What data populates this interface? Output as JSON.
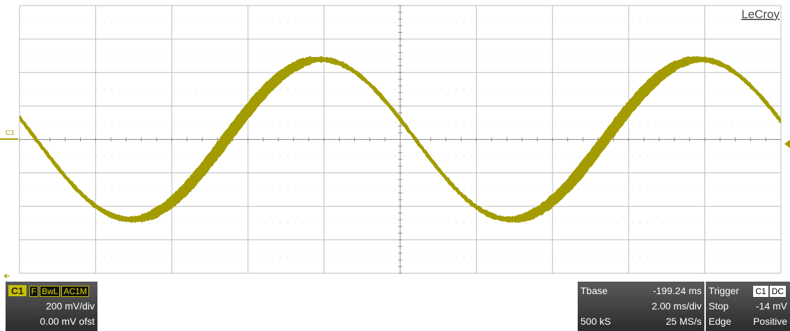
{
  "logo": "LeCroy",
  "trace_marker": "C1",
  "channel": {
    "name": "C1",
    "flags": [
      "F",
      "BwL",
      "AC1M"
    ],
    "scale": "200 mV/div",
    "offset": "0.00 mV ofst"
  },
  "timebase": {
    "label": "Tbase",
    "delay": "-199.24 ms",
    "scale": "2.00 ms/div",
    "samples": "500 kS",
    "rate": "25 MS/s"
  },
  "trigger": {
    "label": "Trigger",
    "source": "C1",
    "coupling": "DC",
    "mode": "Stop",
    "level": "-14 mV",
    "type": "Edge",
    "slope": "Positive"
  }
}
